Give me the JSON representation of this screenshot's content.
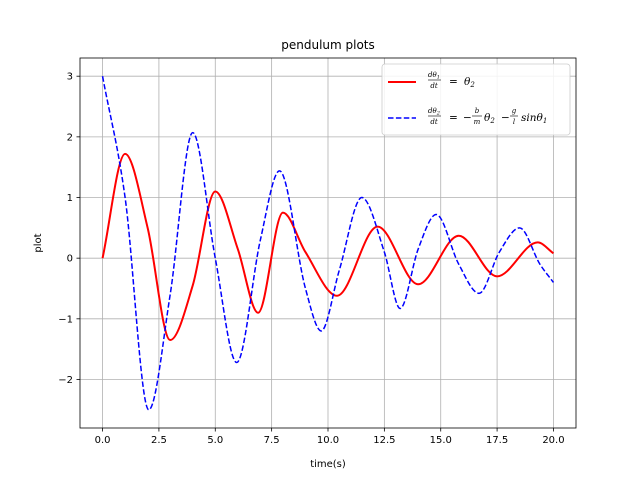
{
  "chart_data": {
    "type": "line",
    "title": "pendulum plots",
    "xlabel": "time(s)",
    "ylabel": "plot",
    "xlim": [
      -1.0,
      21.0
    ],
    "ylim": [
      -2.8,
      3.3
    ],
    "xticks": [
      "0.0",
      "2.5",
      "5.0",
      "7.5",
      "10.0",
      "12.5",
      "15.0",
      "17.5",
      "20.0"
    ],
    "yticks": [
      "−2",
      "−1",
      "0",
      "1",
      "2",
      "3"
    ],
    "grid": true,
    "legend_position": "upper right",
    "legend": [
      {
        "label": "dθ1/dt = θ2"
      },
      {
        "label": "dθ2/dt = −(b/m)θ2 − (g/l)sinθ1"
      }
    ],
    "series": [
      {
        "color": "#ff0000",
        "style": "solid",
        "x": [
          0.0,
          1.0,
          2.0,
          3.0,
          4.0,
          5.0,
          6.0,
          6.9,
          8.0,
          9.0,
          10.4,
          12.2,
          14.0,
          15.8,
          17.5,
          19.3,
          20.0
        ],
        "y": [
          0.0,
          1.72,
          0.5,
          -1.35,
          -0.45,
          1.1,
          0.15,
          -0.9,
          0.75,
          0.1,
          -0.62,
          0.52,
          -0.43,
          0.37,
          -0.3,
          0.26,
          0.08
        ]
      },
      {
        "color": "#0000ff",
        "style": "dashed",
        "x": [
          0.0,
          1.0,
          2.05,
          3.0,
          4.0,
          5.0,
          5.95,
          7.0,
          7.85,
          9.0,
          9.7,
          10.5,
          11.5,
          12.5,
          13.2,
          14.0,
          14.8,
          15.8,
          16.7,
          17.6,
          18.5,
          19.4,
          20.0
        ],
        "y": [
          3.0,
          1.0,
          -2.5,
          -0.6,
          2.07,
          0.0,
          -1.72,
          0.3,
          1.44,
          -0.5,
          -1.2,
          -0.2,
          1.0,
          0.1,
          -0.83,
          0.15,
          0.72,
          -0.1,
          -0.58,
          0.1,
          0.5,
          -0.1,
          -0.4
        ]
      }
    ]
  }
}
